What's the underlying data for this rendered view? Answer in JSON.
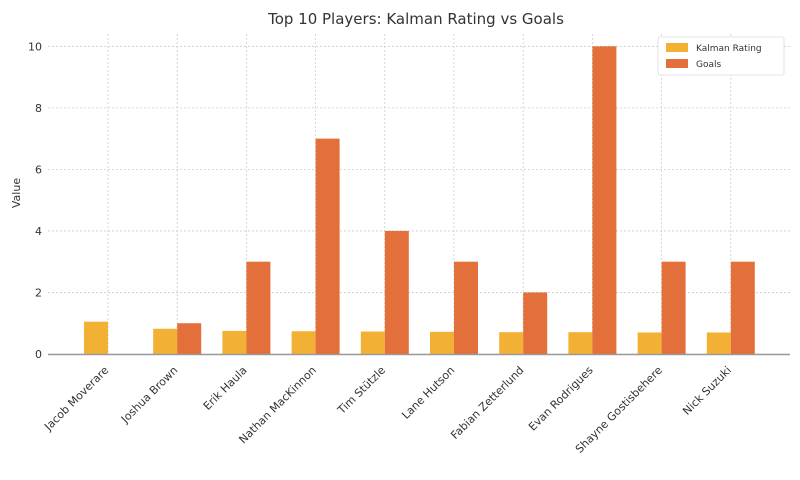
{
  "chart_data": {
    "type": "bar",
    "title": "Top 10 Players: Kalman Rating vs Goals",
    "xlabel": "",
    "ylabel": "Value",
    "ylim": [
      0,
      10.4
    ],
    "yticks": [
      0,
      2,
      4,
      6,
      8,
      10
    ],
    "grid": true,
    "legend_position": "top-right",
    "categories": [
      "Jacob Moverare",
      "Joshua Brown",
      "Erik Haula",
      "Nathan MacKinnon",
      "Tim Stützle",
      "Lane Hutson",
      "Fabian Zetterlund",
      "Evan Rodrigues",
      "Shayne Gostisbehere",
      "Nick Suzuki"
    ],
    "series": [
      {
        "name": "Kalman Rating",
        "color": "#f2b134",
        "values": [
          1.05,
          0.82,
          0.75,
          0.74,
          0.73,
          0.72,
          0.71,
          0.71,
          0.7,
          0.7
        ]
      },
      {
        "name": "Goals",
        "color": "#e3703a",
        "values": [
          0,
          1,
          3,
          7,
          4,
          3,
          2,
          10,
          3,
          3
        ]
      }
    ]
  }
}
